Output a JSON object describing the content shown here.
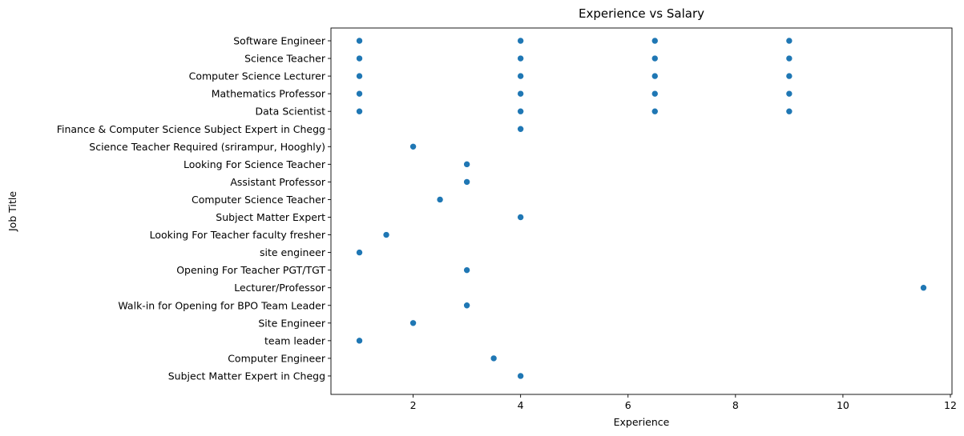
{
  "chart_data": {
    "type": "scatter",
    "title": "Experience vs Salary",
    "xlabel": "Experience",
    "ylabel": "Job Title",
    "xlim": [
      0.47,
      12.03
    ],
    "xticks": [
      2,
      4,
      6,
      8,
      10,
      12
    ],
    "grid": false,
    "color": "#1f77b4",
    "categories": [
      "Software Engineer",
      "Science Teacher",
      "Computer Science Lecturer",
      "Mathematics Professor",
      "Data Scientist",
      "Finance & Computer Science Subject Expert in Chegg",
      "Science Teacher Required (srirampur, Hooghly)",
      "Looking For Science Teacher",
      "Assistant Professor",
      "Computer Science Teacher",
      "Subject Matter Expert",
      "Looking For Teacher faculty fresher",
      "site engineer",
      "Opening For Teacher PGT/TGT",
      "Lecturer/Professor",
      "Walk-in for Opening for BPO Team Leader",
      "Site Engineer",
      "team leader",
      "Computer Engineer",
      "Subject Matter Expert in Chegg"
    ],
    "points": [
      {
        "x": 1,
        "y": "Software Engineer"
      },
      {
        "x": 4,
        "y": "Software Engineer"
      },
      {
        "x": 6.5,
        "y": "Software Engineer"
      },
      {
        "x": 9,
        "y": "Software Engineer"
      },
      {
        "x": 1,
        "y": "Science Teacher"
      },
      {
        "x": 4,
        "y": "Science Teacher"
      },
      {
        "x": 6.5,
        "y": "Science Teacher"
      },
      {
        "x": 9,
        "y": "Science Teacher"
      },
      {
        "x": 1,
        "y": "Computer Science Lecturer"
      },
      {
        "x": 4,
        "y": "Computer Science Lecturer"
      },
      {
        "x": 6.5,
        "y": "Computer Science Lecturer"
      },
      {
        "x": 9,
        "y": "Computer Science Lecturer"
      },
      {
        "x": 1,
        "y": "Mathematics Professor"
      },
      {
        "x": 4,
        "y": "Mathematics Professor"
      },
      {
        "x": 6.5,
        "y": "Mathematics Professor"
      },
      {
        "x": 9,
        "y": "Mathematics Professor"
      },
      {
        "x": 1,
        "y": "Data Scientist"
      },
      {
        "x": 4,
        "y": "Data Scientist"
      },
      {
        "x": 6.5,
        "y": "Data Scientist"
      },
      {
        "x": 9,
        "y": "Data Scientist"
      },
      {
        "x": 4,
        "y": "Finance & Computer Science Subject Expert in Chegg"
      },
      {
        "x": 2,
        "y": "Science Teacher Required (srirampur, Hooghly)"
      },
      {
        "x": 3,
        "y": "Looking For Science Teacher"
      },
      {
        "x": 3,
        "y": "Assistant Professor"
      },
      {
        "x": 2.5,
        "y": "Computer Science Teacher"
      },
      {
        "x": 4,
        "y": "Subject Matter Expert"
      },
      {
        "x": 1.5,
        "y": "Looking For Teacher faculty fresher"
      },
      {
        "x": 1,
        "y": "site engineer"
      },
      {
        "x": 3,
        "y": "Opening For Teacher PGT/TGT"
      },
      {
        "x": 11.5,
        "y": "Lecturer/Professor"
      },
      {
        "x": 3,
        "y": "Walk-in for Opening for BPO Team Leader"
      },
      {
        "x": 2,
        "y": "Site Engineer"
      },
      {
        "x": 1,
        "y": "team leader"
      },
      {
        "x": 3.5,
        "y": "Computer Engineer"
      },
      {
        "x": 4,
        "y": "Subject Matter Expert in Chegg"
      }
    ]
  }
}
